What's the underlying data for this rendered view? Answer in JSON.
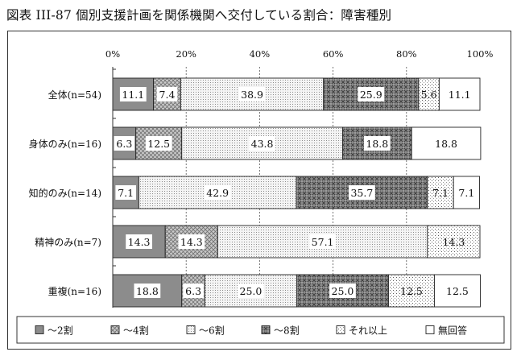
{
  "title": "図表 III-87 個別支援計画を関係機関へ交付している割合：障害種別",
  "chart_data": {
    "type": "bar",
    "orientation": "horizontal",
    "stacked": true,
    "percent": true,
    "categories": [
      "全体(n=54)",
      "身体のみ(n=16)",
      "知的のみ(n=14)",
      "精神のみ(n=7)",
      "重複(n=16)"
    ],
    "series": [
      {
        "name": "～2割",
        "values": [
          11.1,
          6.3,
          7.1,
          14.3,
          18.8
        ]
      },
      {
        "name": "～4割",
        "values": [
          7.4,
          12.5,
          0,
          14.3,
          6.3
        ]
      },
      {
        "name": "～6割",
        "values": [
          38.9,
          43.8,
          42.9,
          57.1,
          25.0
        ]
      },
      {
        "name": "～8割",
        "values": [
          25.9,
          18.8,
          35.7,
          0,
          25.0
        ]
      },
      {
        "name": "それ以上",
        "values": [
          5.6,
          0,
          7.1,
          14.3,
          12.5
        ]
      },
      {
        "name": "無回答",
        "values": [
          11.1,
          18.8,
          7.1,
          0,
          12.5
        ]
      }
    ],
    "xlim": [
      0,
      100
    ],
    "xticks": [
      "0%",
      "20%",
      "40%",
      "60%",
      "80%",
      "100%"
    ],
    "legend": "bottom",
    "grid": true
  }
}
